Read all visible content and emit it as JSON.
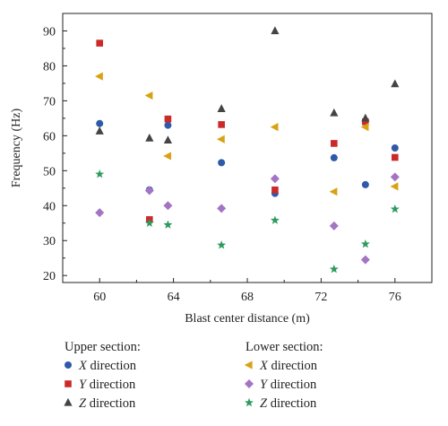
{
  "chart_data": {
    "type": "scatter",
    "xlabel": "Blast center distance (m)",
    "ylabel": "Frequency (Hz)",
    "xlim": [
      58,
      78
    ],
    "ylim": [
      18,
      95
    ],
    "xticks": [
      60,
      64,
      68,
      72,
      76
    ],
    "yticks": [
      20,
      30,
      40,
      50,
      60,
      70,
      80,
      90
    ],
    "grid": false,
    "legend_placement": "bottom",
    "legend_groups": [
      {
        "title": "Upper section:",
        "entries": [
          0,
          1,
          2
        ]
      },
      {
        "title": "Lower section:",
        "entries": [
          3,
          4,
          5
        ]
      }
    ],
    "series": [
      {
        "name": "X direction",
        "group": "Upper section",
        "marker": "circle",
        "color": "#2f5aa8",
        "x": [
          60,
          62.7,
          63.7,
          66.6,
          69.5,
          72.7,
          74.4,
          76
        ],
        "y": [
          63.5,
          44.5,
          63,
          52.3,
          43.5,
          53.7,
          46,
          56.5
        ]
      },
      {
        "name": "Y direction",
        "group": "Upper section",
        "marker": "square",
        "color": "#cc2a2a",
        "x": [
          60,
          62.7,
          63.7,
          66.6,
          69.5,
          72.7,
          74.4,
          76
        ],
        "y": [
          86.5,
          36,
          64.8,
          63.2,
          44.5,
          57.8,
          64,
          53.8
        ]
      },
      {
        "name": "Z direction",
        "group": "Upper section",
        "marker": "triangle-up",
        "color": "#444444",
        "x": [
          60,
          62.7,
          63.7,
          66.6,
          69.5,
          72.7,
          74.4,
          76
        ],
        "y": [
          61.3,
          59.3,
          58.7,
          67.7,
          90,
          66.5,
          65,
          74.8
        ]
      },
      {
        "name": "X direction",
        "group": "Lower section",
        "marker": "triangle-left",
        "color": "#d9a215",
        "x": [
          60,
          62.7,
          63.7,
          66.6,
          69.5,
          72.7,
          74.4,
          76
        ],
        "y": [
          77,
          71.5,
          54.2,
          59,
          62.5,
          44,
          62.5,
          45.5
        ]
      },
      {
        "name": "Y direction",
        "group": "Lower section",
        "marker": "diamond",
        "color": "#a474c4",
        "x": [
          60,
          62.7,
          63.7,
          66.6,
          69.5,
          72.7,
          74.4,
          76
        ],
        "y": [
          38,
          44.3,
          40,
          39.2,
          47.7,
          34.2,
          24.5,
          48.2
        ]
      },
      {
        "name": "Z direction",
        "group": "Lower section",
        "marker": "star",
        "color": "#2e9a5e",
        "x": [
          60,
          62.7,
          63.7,
          66.6,
          69.5,
          72.7,
          74.4,
          76
        ],
        "y": [
          49,
          35,
          34.5,
          28.7,
          35.8,
          21.8,
          29,
          39
        ]
      }
    ]
  }
}
